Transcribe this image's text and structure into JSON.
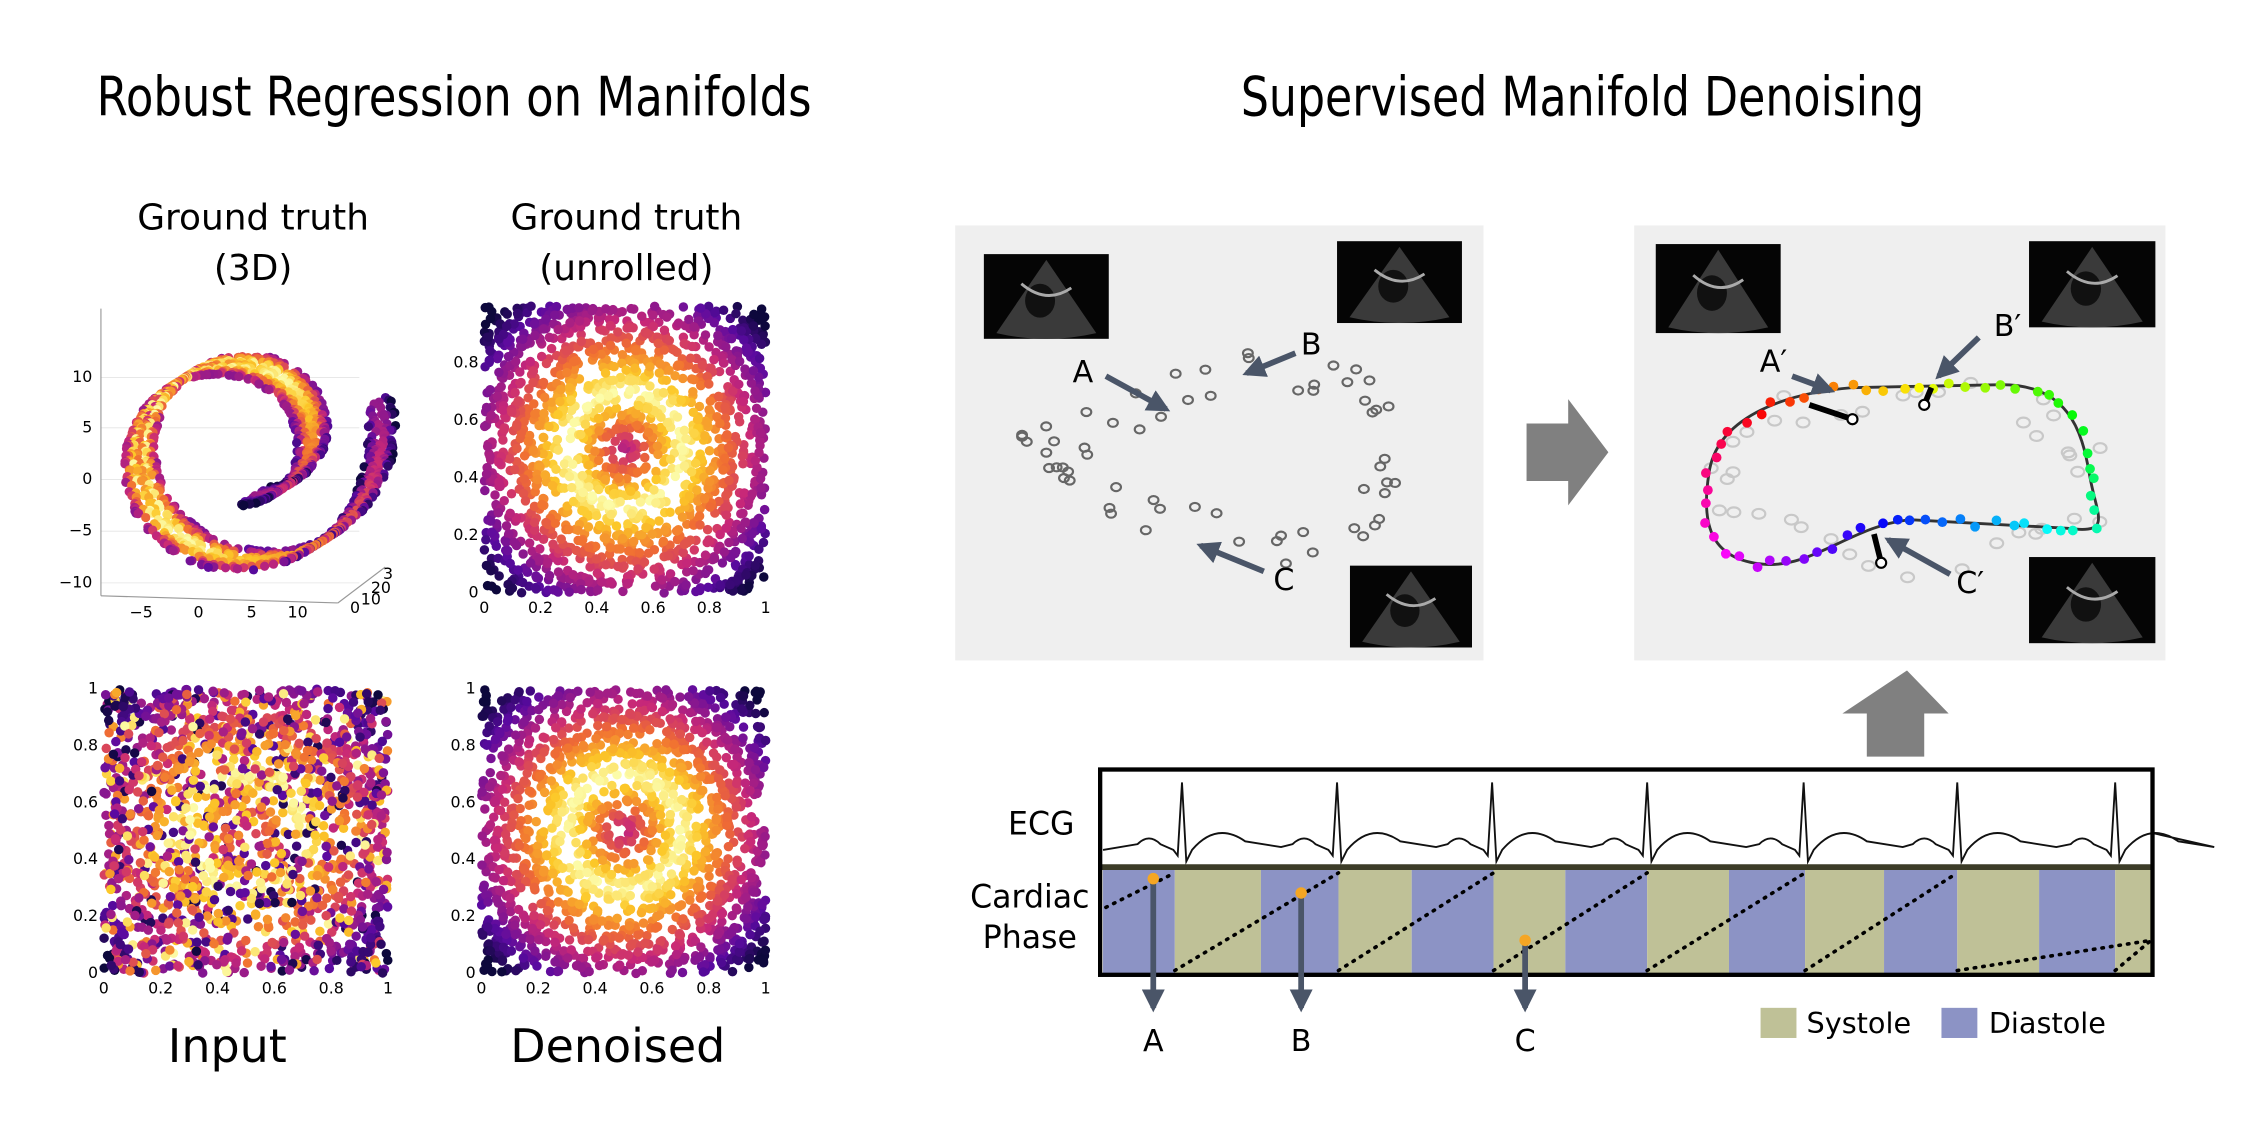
{
  "left": {
    "title": "Robust Regression on Manifolds",
    "panels": [
      {
        "title": [
          "Ground truth",
          "(3D)"
        ],
        "yticks": [
          "10",
          "5",
          "0",
          "−5",
          "−10"
        ],
        "xticks": [
          "−5",
          "0",
          "5",
          "10"
        ],
        "zticks": [
          "3",
          "20",
          "10",
          "0"
        ]
      },
      {
        "title": [
          "Ground truth",
          "(unrolled)"
        ],
        "xticks": [
          0,
          0.2,
          0.4,
          0.6,
          0.8,
          1
        ],
        "yticks": [
          0,
          0.2,
          0.4,
          0.6,
          0.8
        ]
      },
      {
        "caption": "Input",
        "xticks": [
          0,
          0.2,
          0.4,
          0.6,
          0.8,
          1
        ],
        "yticks": [
          0,
          0.2,
          0.4,
          0.6,
          0.8,
          1
        ]
      },
      {
        "caption": "Denoised",
        "xticks": [
          0,
          0.2,
          0.4,
          0.6,
          0.8,
          1
        ],
        "yticks": [
          0,
          0.2,
          0.4,
          0.6,
          0.8,
          1
        ]
      }
    ]
  },
  "right": {
    "title": "Supervised Manifold Denoising",
    "input_labels": [
      "A",
      "B",
      "C"
    ],
    "output_labels": [
      "A′",
      "B′",
      "C′"
    ],
    "ecg": {
      "signal_label": "ECG",
      "phase_label": [
        "Cardiac",
        "Phase"
      ],
      "point_labels": [
        "A",
        "B",
        "C"
      ]
    },
    "legend": [
      {
        "name": "Systole",
        "color": "#bfc197"
      },
      {
        "name": "Diastole",
        "color": "#8c93c5"
      }
    ]
  }
}
